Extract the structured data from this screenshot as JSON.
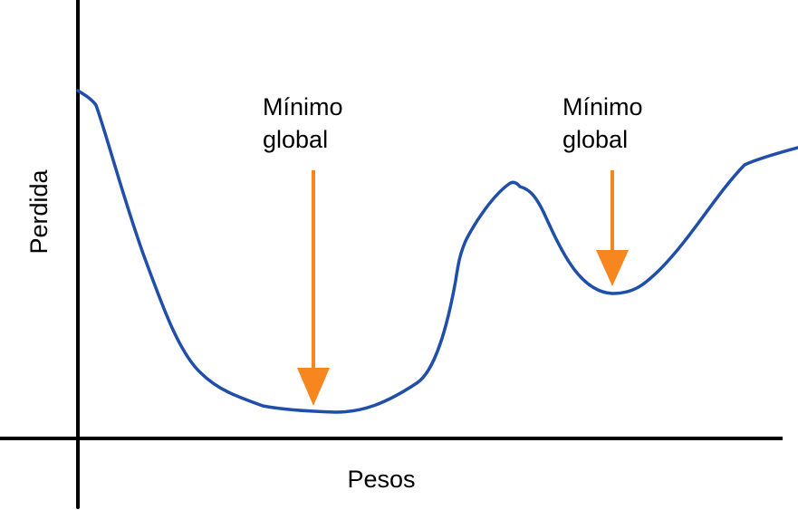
{
  "axes": {
    "x_label": "Pesos",
    "y_label": "Perdida"
  },
  "annotations": [
    {
      "id": "global-minimum",
      "line1": "Mínimo",
      "line2": "global"
    },
    {
      "id": "local-minimum",
      "line1": "Mínimo",
      "line2": "global"
    }
  ],
  "colors": {
    "curve": "#1f4fa8",
    "arrow": "#f7861e",
    "axis": "#000000",
    "text": "#000000"
  }
}
